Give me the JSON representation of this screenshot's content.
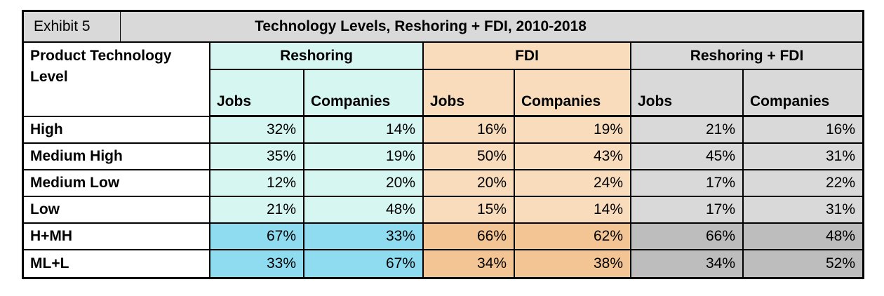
{
  "title_bar": {
    "exhibit_label": "Exhibit 5",
    "title": "Technology Levels, Reshoring + FDI, 2010-2018"
  },
  "table": {
    "row_header": "Product Technology Level",
    "groups": [
      {
        "label": "Reshoring"
      },
      {
        "label": "FDI"
      },
      {
        "label": "Reshoring + FDI"
      }
    ],
    "sub_headers": [
      "Jobs",
      "Companies",
      "Jobs",
      "Companies",
      "Jobs",
      "Companies"
    ],
    "rows": [
      {
        "label": "High",
        "values": [
          "32%",
          "14%",
          "16%",
          "19%",
          "21%",
          "16%"
        ],
        "emphasis": false
      },
      {
        "label": "Medium High",
        "values": [
          "35%",
          "19%",
          "50%",
          "43%",
          "45%",
          "31%"
        ],
        "emphasis": false
      },
      {
        "label": "Medium Low",
        "values": [
          "12%",
          "20%",
          "20%",
          "24%",
          "17%",
          "22%"
        ],
        "emphasis": false
      },
      {
        "label": "Low",
        "values": [
          "21%",
          "48%",
          "15%",
          "14%",
          "17%",
          "31%"
        ],
        "emphasis": false
      },
      {
        "label": "H+MH",
        "values": [
          "67%",
          "33%",
          "66%",
          "62%",
          "66%",
          "48%"
        ],
        "emphasis": true
      },
      {
        "label": "ML+L",
        "values": [
          "33%",
          "67%",
          "34%",
          "38%",
          "34%",
          "52%"
        ],
        "emphasis": true
      }
    ]
  },
  "colors": {
    "band_gray": "#d9d9d9",
    "cyan_light": "#d5f6f1",
    "cyan_dark": "#8fdcf0",
    "peach_light": "#f8dcbc",
    "peach_dark": "#f3c494",
    "gray_light": "#d9d9d9",
    "gray_dark": "#bdbdbd",
    "border_color": "#000000"
  },
  "chart_data": {
    "type": "table",
    "title": "Technology Levels, Reshoring + FDI, 2010-2018",
    "exhibit": "Exhibit 5",
    "row_header": "Product Technology Level",
    "column_groups": [
      "Reshoring",
      "FDI",
      "Reshoring + FDI"
    ],
    "columns": [
      "Reshoring Jobs",
      "Reshoring Companies",
      "FDI Jobs",
      "FDI Companies",
      "Reshoring + FDI Jobs",
      "Reshoring + FDI Companies"
    ],
    "unit": "percent",
    "rows": [
      {
        "label": "High",
        "values": [
          32,
          14,
          16,
          19,
          21,
          16
        ]
      },
      {
        "label": "Medium High",
        "values": [
          35,
          19,
          50,
          43,
          45,
          31
        ]
      },
      {
        "label": "Medium Low",
        "values": [
          12,
          20,
          20,
          24,
          17,
          22
        ]
      },
      {
        "label": "Low",
        "values": [
          21,
          48,
          15,
          14,
          17,
          31
        ]
      },
      {
        "label": "H+MH",
        "values": [
          67,
          33,
          66,
          62,
          66,
          48
        ]
      },
      {
        "label": "ML+L",
        "values": [
          33,
          67,
          34,
          38,
          34,
          52
        ]
      }
    ]
  }
}
